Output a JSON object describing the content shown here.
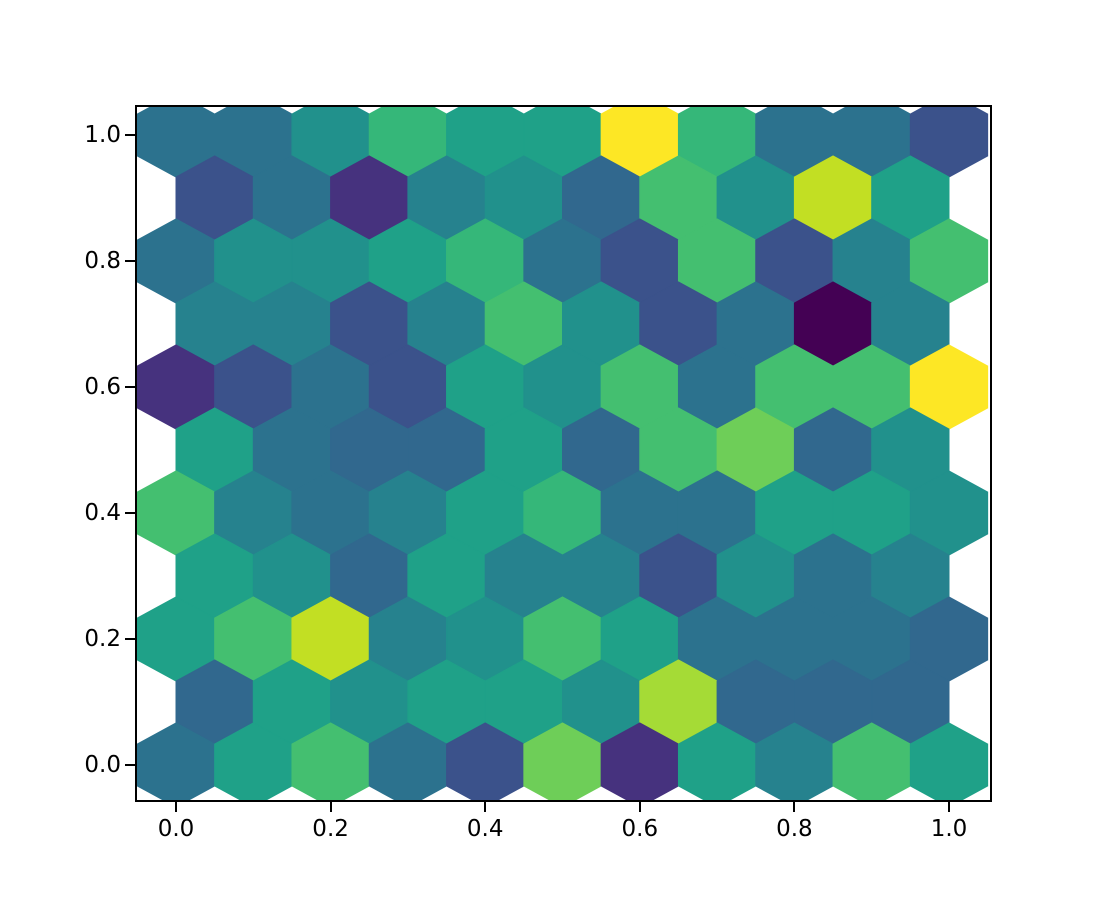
{
  "figure": {
    "background": "#ffffff",
    "axis_color": "#000000"
  },
  "chart_data": {
    "type": "hexbin",
    "colormap": "viridis",
    "title": "",
    "xlabel": "",
    "ylabel": "",
    "x_ticks": [
      "0.0",
      "0.2",
      "0.4",
      "0.6",
      "0.8",
      "1.0"
    ],
    "x_tick_values": [
      0.0,
      0.2,
      0.4,
      0.6,
      0.8,
      1.0
    ],
    "y_ticks": [
      "0.0",
      "0.2",
      "0.4",
      "0.6",
      "0.8",
      "1.0"
    ],
    "y_tick_values": [
      0.0,
      0.2,
      0.4,
      0.6,
      0.8,
      1.0
    ],
    "xlim": [
      -0.0505,
      1.0531
    ],
    "ylim": [
      -0.0556,
      1.0444
    ],
    "grid": {
      "columns": 10,
      "row_count": 11,
      "col_step": 0.1,
      "row_step": 0.1,
      "legend": "rows listed top (y=1.0) to bottom (y=0.0); even rows start at x=0.0 with 11 cells, odd rows start at x=0.05 with 10 cells"
    },
    "palette": {
      "c0": "#440154",
      "c1": "#46327e",
      "c2": "#3b528b",
      "c3": "#31688e",
      "c4": "#2c728e",
      "c5": "#26828e",
      "c6": "#21918c",
      "c7": "#1fa188",
      "c8": "#35b779",
      "c9": "#44bf70",
      "c10": "#6ece58",
      "c11": "#a5db36",
      "c12": "#c2df23",
      "c13": "#fde725"
    },
    "rows": [
      {
        "y": 1.0,
        "x_start": 0.0,
        "cells": [
          "c4",
          "c4",
          "c6",
          "c8",
          "c7",
          "c7",
          "c13",
          "c8",
          "c4",
          "c4",
          "c2"
        ]
      },
      {
        "y": 0.9,
        "x_start": 0.05,
        "cells": [
          "c2",
          "c4",
          "c1",
          "c5",
          "c6",
          "c3",
          "c9",
          "c6",
          "c12",
          "c7"
        ]
      },
      {
        "y": 0.8,
        "x_start": 0.0,
        "cells": [
          "c4",
          "c6",
          "c6",
          "c7",
          "c8",
          "c4",
          "c2",
          "c9",
          "c2",
          "c5",
          "c9"
        ]
      },
      {
        "y": 0.7,
        "x_start": 0.05,
        "cells": [
          "c5",
          "c5",
          "c2",
          "c5",
          "c9",
          "c6",
          "c2",
          "c4",
          "c0",
          "c5"
        ]
      },
      {
        "y": 0.6,
        "x_start": 0.0,
        "cells": [
          "c1",
          "c2",
          "c4",
          "c2",
          "c7",
          "c6",
          "c9",
          "c4",
          "c9",
          "c9",
          "c13"
        ]
      },
      {
        "y": 0.5,
        "x_start": 0.05,
        "cells": [
          "c7",
          "c4",
          "c3",
          "c3",
          "c7",
          "c3",
          "c9",
          "c10",
          "c3",
          "c6"
        ]
      },
      {
        "y": 0.4,
        "x_start": 0.0,
        "cells": [
          "c9",
          "c5",
          "c4",
          "c5",
          "c7",
          "c8",
          "c4",
          "c4",
          "c7",
          "c7",
          "c6"
        ]
      },
      {
        "y": 0.3,
        "x_start": 0.05,
        "cells": [
          "c7",
          "c6",
          "c3",
          "c7",
          "c5",
          "c5",
          "c2",
          "c6",
          "c4",
          "c5"
        ]
      },
      {
        "y": 0.2,
        "x_start": 0.0,
        "cells": [
          "c7",
          "c9",
          "c12",
          "c5",
          "c6",
          "c9",
          "c7",
          "c4",
          "c4",
          "c4",
          "c3"
        ]
      },
      {
        "y": 0.1,
        "x_start": 0.05,
        "cells": [
          "c3",
          "c7",
          "c6",
          "c7",
          "c7",
          "c6",
          "c11",
          "c3",
          "c3",
          "c3"
        ]
      },
      {
        "y": 0.0,
        "x_start": 0.0,
        "cells": [
          "c4",
          "c7",
          "c9",
          "c4",
          "c2",
          "c10",
          "c1",
          "c7",
          "c5",
          "c9",
          "c7"
        ]
      }
    ]
  }
}
